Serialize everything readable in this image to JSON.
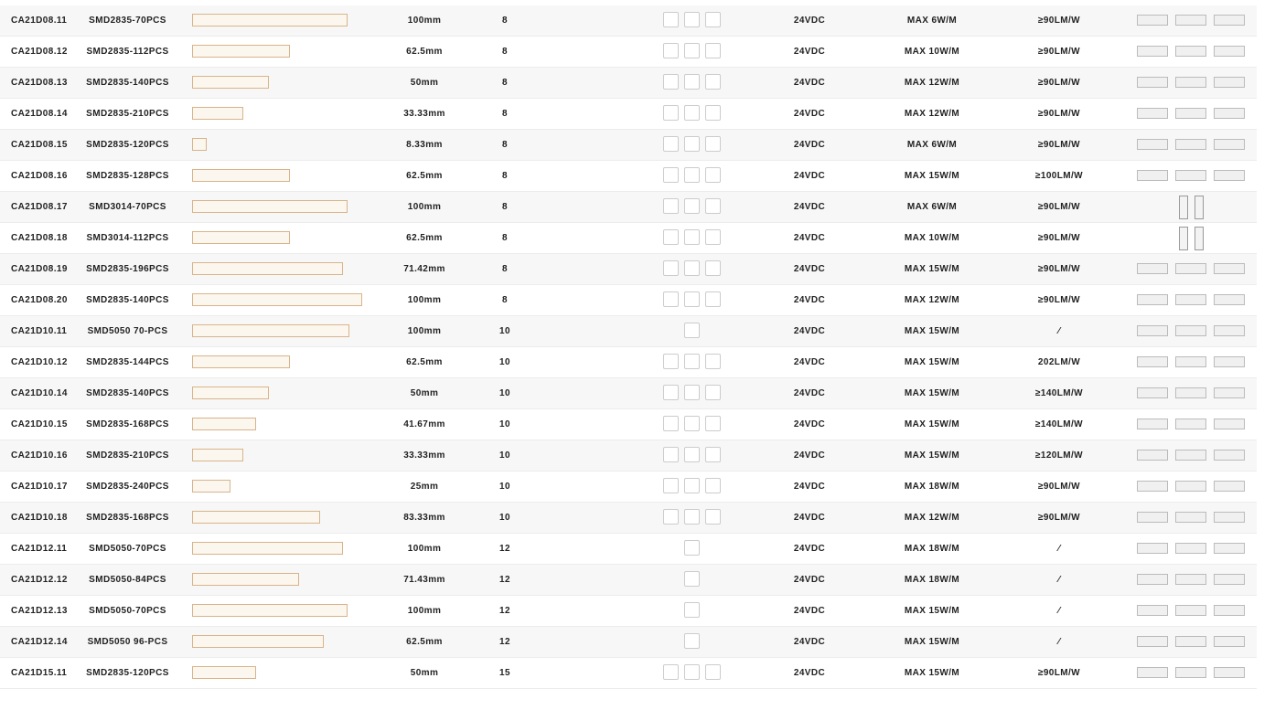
{
  "table": {
    "rows": [
      [
        "CA21D08.11",
        "SMD2835-70PCS",
        "100mm",
        "8",
        "24VDC",
        "MAX 6W/M",
        "≥90LM/W"
      ],
      [
        "CA21D08.12",
        "SMD2835-112PCS",
        "62.5mm",
        "8",
        "24VDC",
        "MAX 10W/M",
        "≥90LM/W"
      ],
      [
        "CA21D08.13",
        "SMD2835-140PCS",
        "50mm",
        "8",
        "24VDC",
        "MAX 12W/M",
        "≥90LM/W"
      ],
      [
        "CA21D08.14",
        "SMD2835-210PCS",
        "33.33mm",
        "8",
        "24VDC",
        "MAX 12W/M",
        "≥90LM/W"
      ],
      [
        "CA21D08.15",
        "SMD2835-120PCS",
        "8.33mm",
        "8",
        "24VDC",
        "MAX 6W/M",
        "≥90LM/W"
      ],
      [
        "CA21D08.16",
        "SMD2835-128PCS",
        "62.5mm",
        "8",
        "24VDC",
        "MAX 15W/M",
        "≥100LM/W"
      ],
      [
        "CA21D08.17",
        "SMD3014-70PCS",
        "100mm",
        "8",
        "24VDC",
        "MAX 6W/M",
        "≥90LM/W"
      ],
      [
        "CA21D08.18",
        "SMD3014-112PCS",
        "62.5mm",
        "8",
        "24VDC",
        "MAX 10W/M",
        "≥90LM/W"
      ],
      [
        "CA21D08.19",
        "SMD2835-196PCS",
        "71.42mm",
        "8",
        "24VDC",
        "MAX 15W/M",
        "≥90LM/W"
      ],
      [
        "CA21D08.20",
        "SMD2835-140PCS",
        "100mm",
        "8",
        "24VDC",
        "MAX 12W/M",
        "≥90LM/W"
      ],
      [
        "CA21D10.11",
        "SMD5050 70-PCS",
        "100mm",
        "10",
        "24VDC",
        "MAX 15W/M",
        "⁄"
      ],
      [
        "CA21D10.12",
        "SMD2835-144PCS",
        "62.5mm",
        "10",
        "24VDC",
        "MAX 15W/M",
        "202LM/W"
      ],
      [
        "CA21D10.14",
        "SMD2835-140PCS",
        "50mm",
        "10",
        "24VDC",
        "MAX 15W/M",
        "≥140LM/W"
      ],
      [
        "CA21D10.15",
        "SMD2835-168PCS",
        "41.67mm",
        "10",
        "24VDC",
        "MAX 15W/M",
        "≥140LM/W"
      ],
      [
        "CA21D10.16",
        "SMD2835-210PCS",
        "33.33mm",
        "10",
        "24VDC",
        "MAX 15W/M",
        "≥120LM/W"
      ],
      [
        "CA21D10.17",
        "SMD2835-240PCS",
        "25mm",
        "10",
        "24VDC",
        "MAX 18W/M",
        "≥90LM/W"
      ],
      [
        "CA21D10.18",
        "SMD2835-168PCS",
        "83.33mm",
        "10",
        "24VDC",
        "MAX 12W/M",
        "≥90LM/W"
      ],
      [
        "CA21D12.11",
        "SMD5050-70PCS",
        "100mm",
        "12",
        "24VDC",
        "MAX 18W/M",
        "⁄"
      ],
      [
        "CA21D12.12",
        "SMD5050-84PCS",
        "71.43mm",
        "12",
        "24VDC",
        "MAX 18W/M",
        "⁄"
      ],
      [
        "CA21D12.13",
        "SMD5050-70PCS",
        "100mm",
        "12",
        "24VDC",
        "MAX 15W/M",
        "⁄"
      ],
      [
        "CA21D12.14",
        "SMD5050 96-PCS",
        "62.5mm",
        "12",
        "24VDC",
        "MAX 15W/M",
        "⁄"
      ],
      [
        "CA21D15.11",
        "SMD2835-120PCS",
        "50mm",
        "15",
        "24VDC",
        "MAX 15W/M",
        "≥90LM/W"
      ]
    ]
  }
}
